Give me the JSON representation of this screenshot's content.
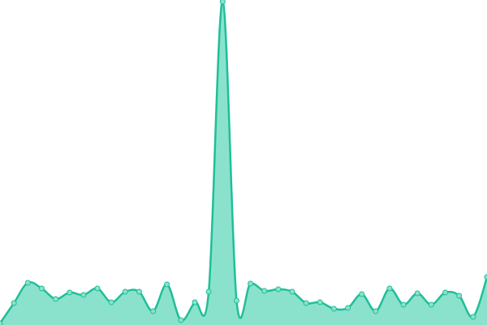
{
  "chart_data": {
    "type": "area",
    "categories": [
      null,
      null,
      null,
      null,
      null,
      null,
      null,
      null,
      null,
      null,
      null,
      null,
      null,
      null,
      null,
      null,
      null,
      null,
      null,
      null,
      null,
      null,
      null,
      null,
      null,
      null,
      null,
      null,
      null,
      null,
      null,
      null,
      null,
      null,
      null,
      null
    ],
    "values": [
      2,
      27,
      52,
      45,
      32,
      40,
      37,
      45,
      28,
      41,
      41,
      17,
      50,
      6,
      28,
      41,
      398,
      30,
      51,
      42,
      44,
      41,
      27,
      28,
      20,
      21,
      38,
      17,
      45,
      25,
      39,
      25,
      40,
      36,
      10,
      59
    ],
    "color": "#1fbf98",
    "fill": "#8be2cc",
    "ylim": [
      0,
      400
    ]
  }
}
